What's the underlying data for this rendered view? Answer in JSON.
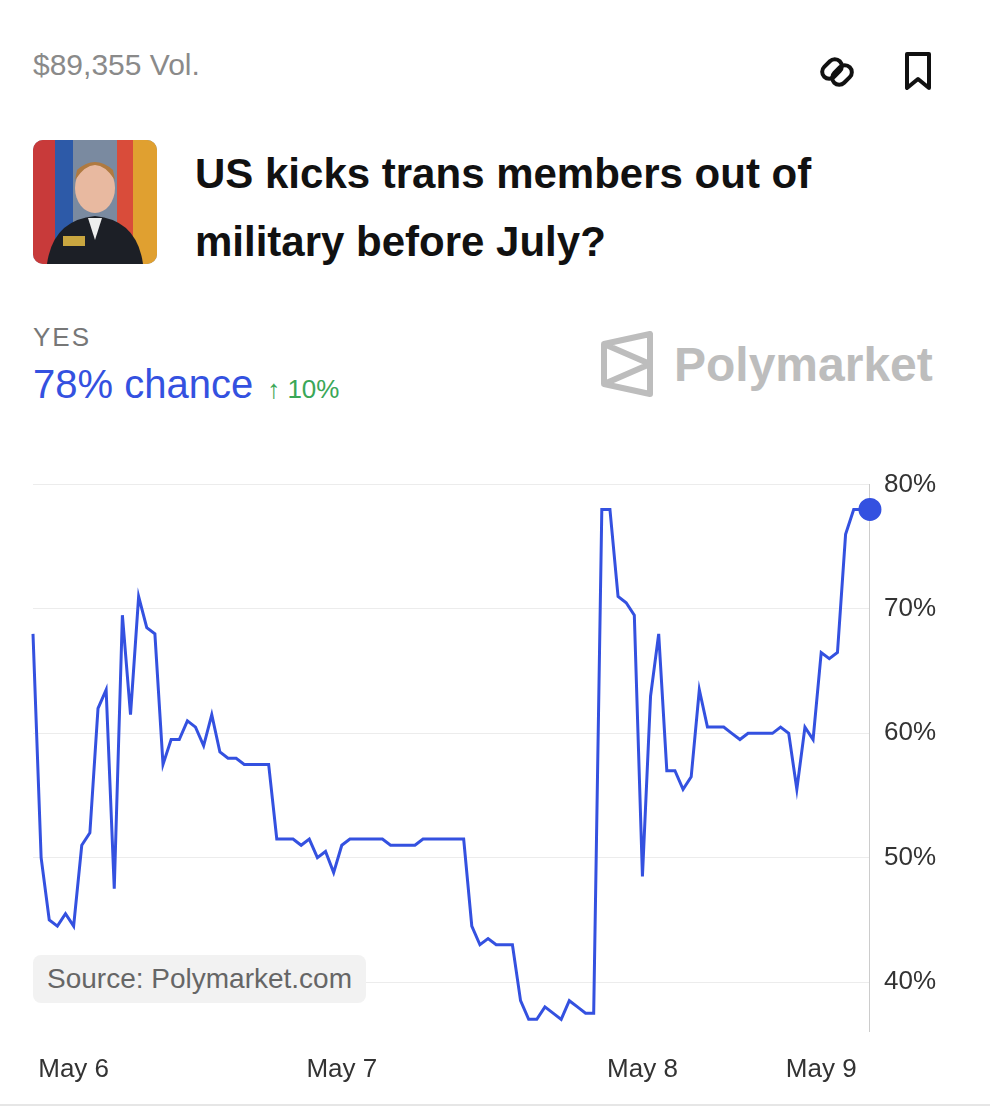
{
  "header": {
    "volume": "$89,355 Vol.",
    "title": "US kicks trans members out of military before July?",
    "outcome": "YES",
    "chance": "78% chance",
    "change": "↑ 10%",
    "brand": "Polymarket"
  },
  "chart_data": {
    "type": "line",
    "source": "Source: Polymarket.com",
    "categories": [
      null,
      null,
      null,
      null,
      null,
      "May 6",
      null,
      null,
      null,
      null,
      null,
      null,
      null,
      null,
      null,
      null,
      null,
      null,
      null,
      null,
      null,
      null,
      null,
      null,
      null,
      null,
      null,
      null,
      null,
      null,
      null,
      null,
      null,
      null,
      null,
      null,
      null,
      null,
      "May 7",
      null,
      null,
      null,
      null,
      null,
      null,
      null,
      null,
      null,
      null,
      null,
      null,
      null,
      null,
      null,
      null,
      null,
      null,
      null,
      null,
      null,
      null,
      null,
      null,
      null,
      null,
      null,
      null,
      null,
      null,
      null,
      null,
      null,
      null,
      null,
      null,
      "May 8",
      null,
      null,
      null,
      null,
      null,
      null,
      null,
      null,
      null,
      null,
      null,
      null,
      null,
      null,
      null,
      null,
      null,
      null,
      null,
      null,
      null,
      "May 9",
      null,
      null,
      null,
      null,
      null,
      null
    ],
    "values": [
      68,
      50,
      45,
      44.5,
      45.5,
      44.5,
      51,
      52,
      62,
      63.5,
      47.5,
      69.5,
      61.5,
      71,
      68.5,
      68,
      57.5,
      59.5,
      59.5,
      61,
      60.5,
      59,
      61.5,
      58.5,
      58,
      58,
      57.5,
      57.5,
      57.5,
      57.5,
      51.5,
      51.5,
      51.5,
      51,
      51.5,
      50,
      50.5,
      48.8,
      51,
      51.5,
      51.5,
      51.5,
      51.5,
      51.5,
      51,
      51,
      51,
      51,
      51.5,
      51.5,
      51.5,
      51.5,
      51.5,
      51.5,
      44.5,
      43,
      43.5,
      43,
      43,
      43,
      38.5,
      37,
      37,
      38,
      37.5,
      37,
      38.5,
      38,
      37.5,
      37.5,
      78,
      78,
      71,
      70.5,
      69.5,
      48.5,
      63,
      68,
      57,
      57,
      55.5,
      56.5,
      63.5,
      60.5,
      60.5,
      60.5,
      60,
      59.5,
      60,
      60,
      60,
      60,
      60.5,
      60,
      55.5,
      60.5,
      59.5,
      66.5,
      66,
      66.5,
      76,
      78,
      78,
      78
    ],
    "color": "#3451e0",
    "marker": "end",
    "ylim": [
      36,
      80
    ],
    "yticks": [
      {
        "value": 40,
        "label": "40%"
      },
      {
        "value": 50,
        "label": "50%"
      },
      {
        "value": 60,
        "label": "60%"
      },
      {
        "value": 70,
        "label": "70%"
      },
      {
        "value": 80,
        "label": "80%"
      }
    ],
    "grid": true
  }
}
